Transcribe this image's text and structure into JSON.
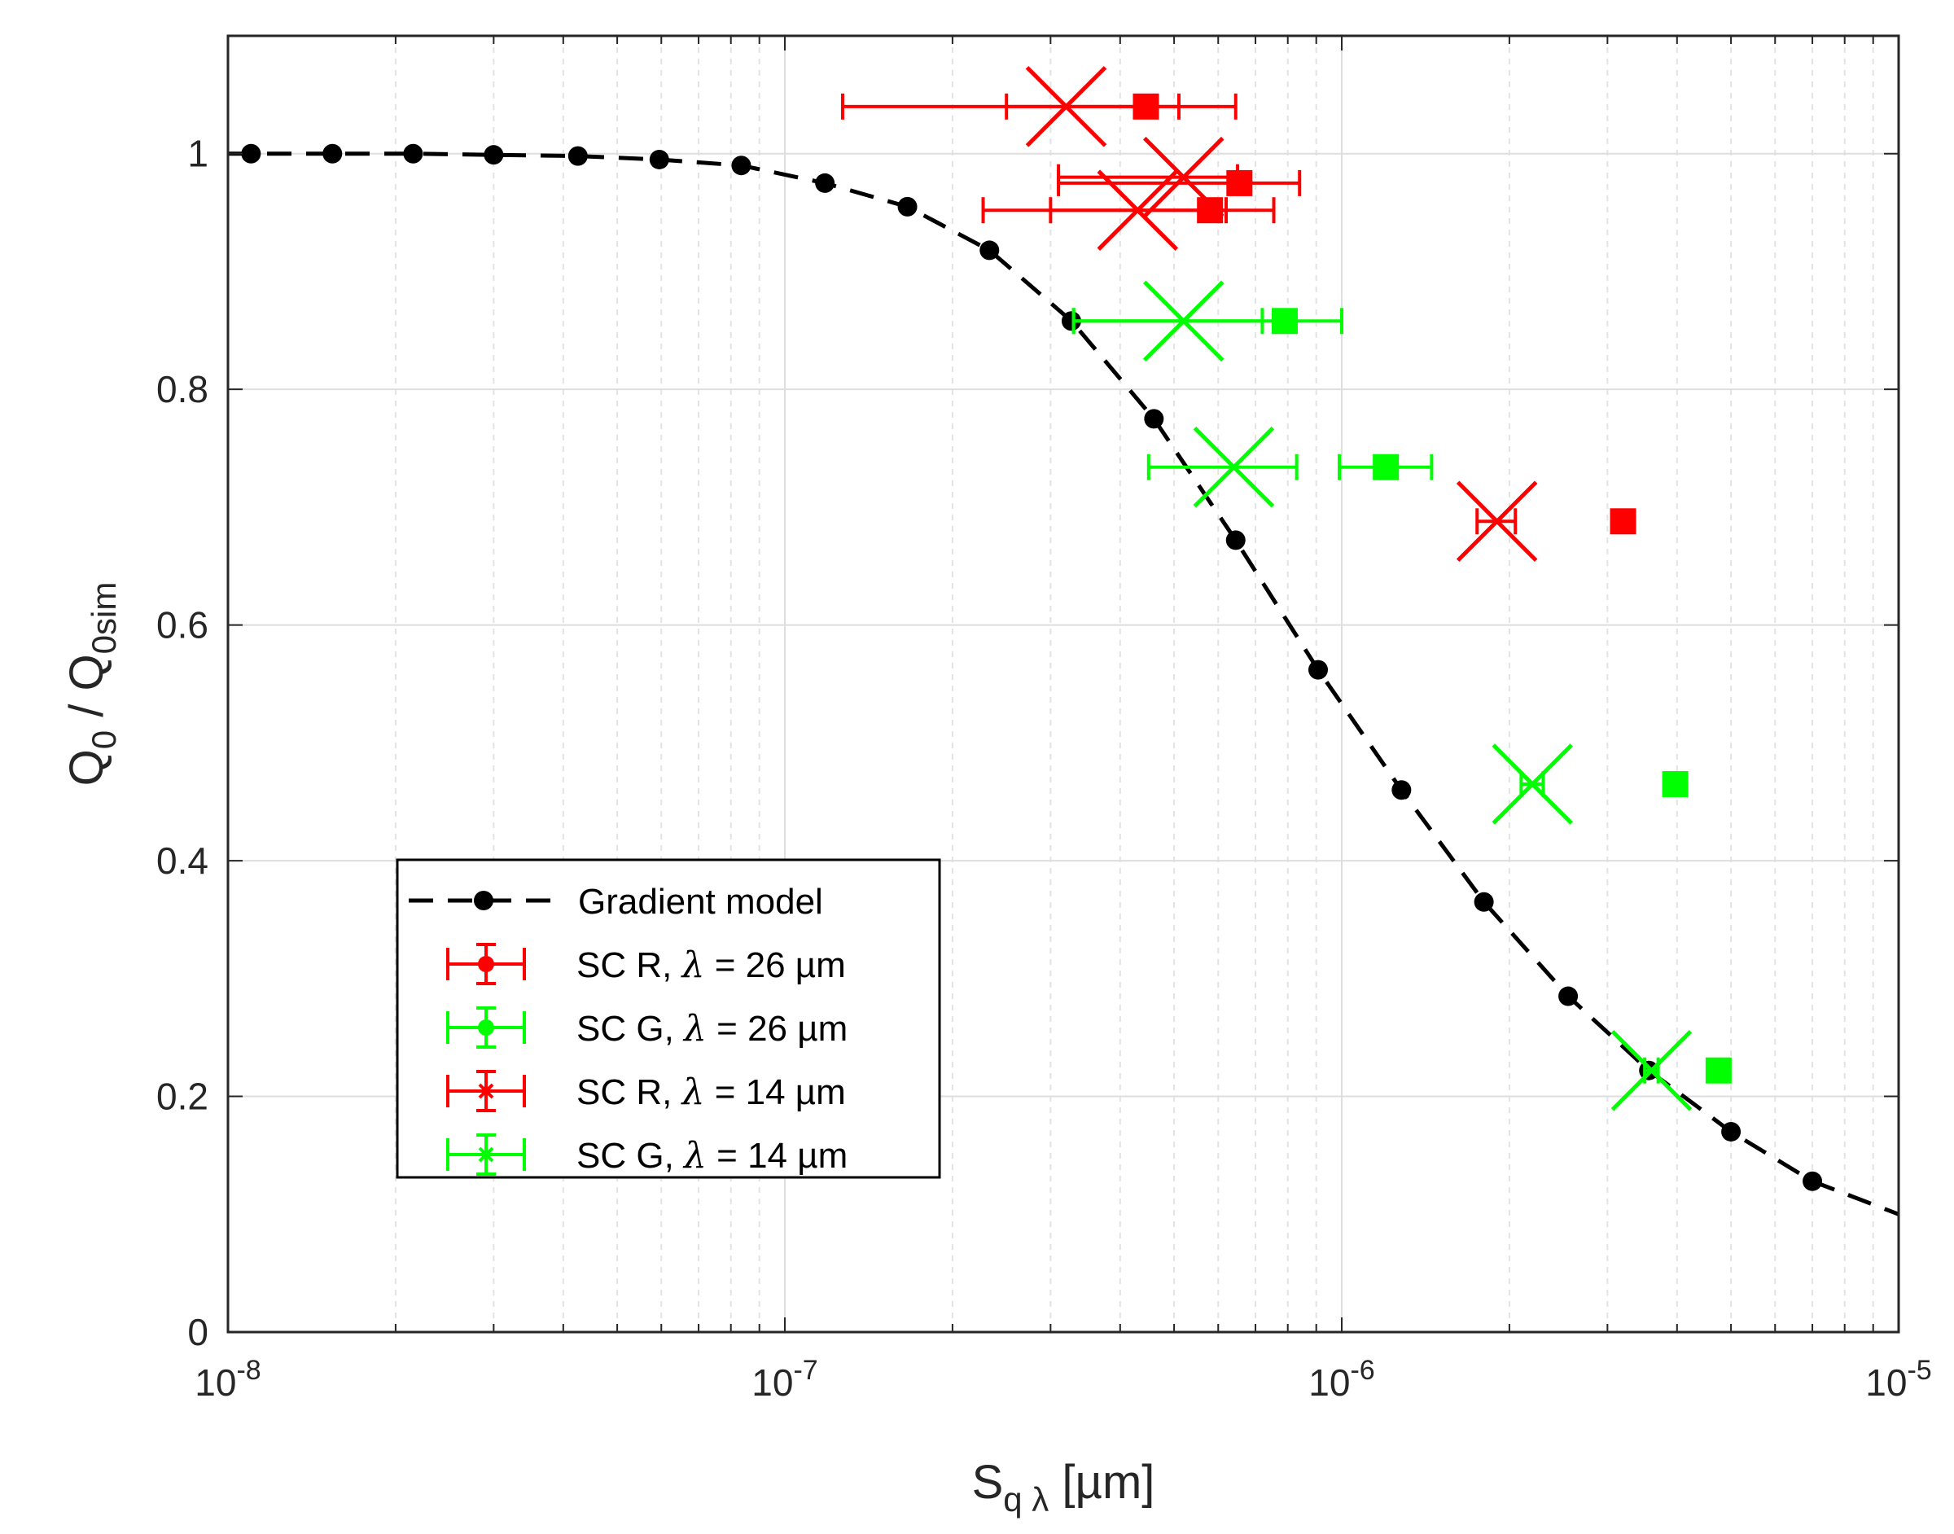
{
  "chart_data": {
    "type": "scatter",
    "title": "",
    "xlabel": "S",
    "xlabel_sub": "q λ",
    "xlabel_unit": " [µm]",
    "ylabel_parts": {
      "q0": "Q",
      "sub0": "0",
      "sep": " / Q",
      "sub1": "0sim"
    },
    "x_scale": "log",
    "xlim": [
      1e-08,
      1e-05
    ],
    "ylim": [
      0,
      1.1
    ],
    "grid": true,
    "xticks": [
      {
        "value": 1e-08,
        "base": "10",
        "exp": "-8"
      },
      {
        "value": 1e-07,
        "base": "10",
        "exp": "-7"
      },
      {
        "value": 1e-06,
        "base": "10",
        "exp": "-6"
      },
      {
        "value": 1e-05,
        "base": "10",
        "exp": "-5"
      }
    ],
    "yticks": [
      {
        "value": 0,
        "label": "0"
      },
      {
        "value": 0.2,
        "label": "0.2"
      },
      {
        "value": 0.4,
        "label": "0.4"
      },
      {
        "value": 0.6,
        "label": "0.6"
      },
      {
        "value": 0.8,
        "label": "0.8"
      },
      {
        "value": 1.0,
        "label": "1"
      }
    ],
    "series": [
      {
        "name": "Gradient model",
        "color": "#000000",
        "style": "dashed-line-dots",
        "x": [
          1.1e-08,
          1.54e-08,
          2.15e-08,
          3e-08,
          4.25e-08,
          5.95e-08,
          8.35e-08,
          1.18e-07,
          1.66e-07,
          2.33e-07,
          3.27e-07,
          4.6e-07,
          6.45e-07,
          9.07e-07,
          1.28e-06,
          1.8e-06,
          2.55e-06,
          3.56e-06,
          5e-06,
          7e-06
        ],
        "y": [
          1.0,
          1.0,
          1.0,
          0.999,
          0.998,
          0.995,
          0.99,
          0.975,
          0.955,
          0.918,
          0.858,
          0.775,
          0.672,
          0.562,
          0.46,
          0.365,
          0.285,
          0.222,
          0.17,
          0.128
        ],
        "curve_x": [
          1e-08,
          1.1e-08,
          1.54e-08,
          2.15e-08,
          3e-08,
          4.25e-08,
          5.95e-08,
          8.35e-08,
          1.18e-07,
          1.66e-07,
          2.33e-07,
          3.27e-07,
          4.6e-07,
          6.45e-07,
          9.07e-07,
          1.28e-06,
          1.8e-06,
          2.55e-06,
          3.56e-06,
          5e-06,
          7e-06,
          1e-05
        ],
        "curve_y": [
          1.0,
          1.0,
          1.0,
          1.0,
          0.999,
          0.998,
          0.995,
          0.99,
          0.975,
          0.955,
          0.918,
          0.858,
          0.775,
          0.672,
          0.562,
          0.46,
          0.365,
          0.285,
          0.222,
          0.17,
          0.128,
          0.1
        ]
      },
      {
        "name": "SC R, λ = 26 µm",
        "legend_prefix": "SC R, ",
        "legend_lambda": "λ",
        "legend_suffix": " = 26 µm",
        "color": "#ff0000",
        "marker": "square",
        "points": [
          {
            "x": 4.45e-07,
            "y": 1.04,
            "xerr": [
              1.27e-07,
              6.45e-07
            ]
          },
          {
            "x": 6.55e-07,
            "y": 0.975,
            "xerr": [
              3.1e-07,
              8.4e-07
            ]
          },
          {
            "x": 5.8e-07,
            "y": 0.952,
            "xerr": [
              2.27e-07,
              7.55e-07
            ]
          },
          {
            "x": 3.2e-06,
            "y": 0.688
          }
        ]
      },
      {
        "name": "SC G, λ = 26 µm",
        "legend_prefix": "SC G, ",
        "legend_lambda": "λ",
        "legend_suffix": " = 26 µm",
        "color": "#00ff00",
        "marker": "square",
        "points": [
          {
            "x": 7.9e-07,
            "y": 0.858,
            "xerr": [
              3.3e-07,
              1e-06
            ]
          },
          {
            "x": 1.2e-06,
            "y": 0.734,
            "xerr": [
              9.9e-07,
              1.45e-06
            ]
          },
          {
            "x": 3.97e-06,
            "y": 0.465
          },
          {
            "x": 4.75e-06,
            "y": 0.222
          }
        ]
      },
      {
        "name": "SC R, λ = 14 µm",
        "legend_prefix": "SC R, ",
        "legend_lambda": "λ",
        "legend_suffix": " = 14 µm",
        "color": "#ff0000",
        "marker": "x",
        "points": [
          {
            "x": 3.2e-07,
            "y": 1.04,
            "xerr": [
              2.5e-07,
              5.1e-07
            ]
          },
          {
            "x": 5.2e-07,
            "y": 0.98,
            "xerr": [
              3.1e-07,
              6.5e-07
            ]
          },
          {
            "x": 4.3e-07,
            "y": 0.952,
            "xerr": [
              3e-07,
              6.2e-07
            ]
          },
          {
            "x": 1.9e-06,
            "y": 0.688,
            "xerr": [
              1.75e-06,
              2.05e-06
            ]
          }
        ]
      },
      {
        "name": "SC G, λ = 14 µm",
        "legend_prefix": "SC G, ",
        "legend_lambda": "λ",
        "legend_suffix": " = 14 µm",
        "color": "#00ff00",
        "marker": "x",
        "points": [
          {
            "x": 5.2e-07,
            "y": 0.858,
            "xerr": [
              3.3e-07,
              7.2e-07
            ]
          },
          {
            "x": 6.4e-07,
            "y": 0.734,
            "xerr": [
              4.5e-07,
              8.3e-07
            ]
          },
          {
            "x": 2.2e-06,
            "y": 0.465,
            "xerr": [
              2.1e-06,
              2.3e-06
            ]
          },
          {
            "x": 3.6e-06,
            "y": 0.222,
            "xerr": [
              3.5e-06,
              3.7e-06
            ]
          }
        ]
      }
    ],
    "legend": {
      "position": "lower-left"
    }
  }
}
